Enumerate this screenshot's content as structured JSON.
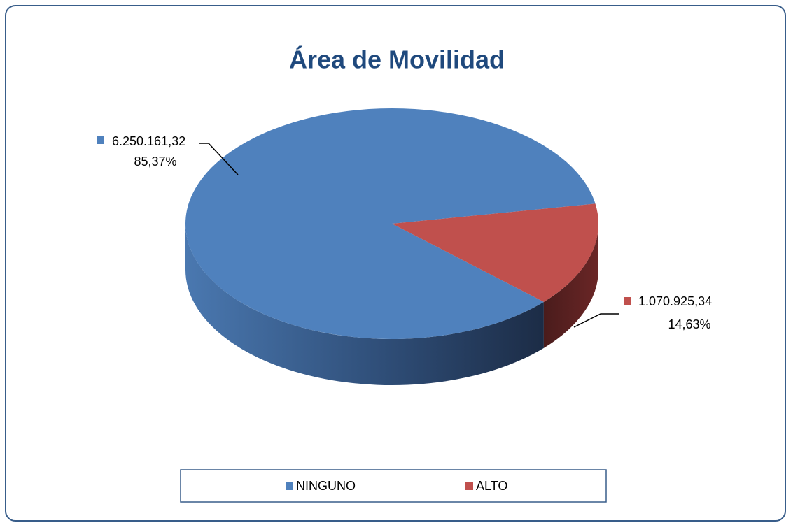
{
  "chart_data": {
    "type": "pie",
    "title": "Área de Movilidad",
    "categories": [
      "NINGUNO",
      "ALTO"
    ],
    "values": [
      6250161.32,
      1070925.34
    ],
    "value_labels": [
      "6.250.161,32",
      "1.070.925,34"
    ],
    "percentages": [
      85.37,
      14.63
    ],
    "percentage_labels": [
      "85,37%",
      "14,63%"
    ],
    "colors": [
      "#4f81bd",
      "#c0504d"
    ],
    "legend": "bottom"
  }
}
